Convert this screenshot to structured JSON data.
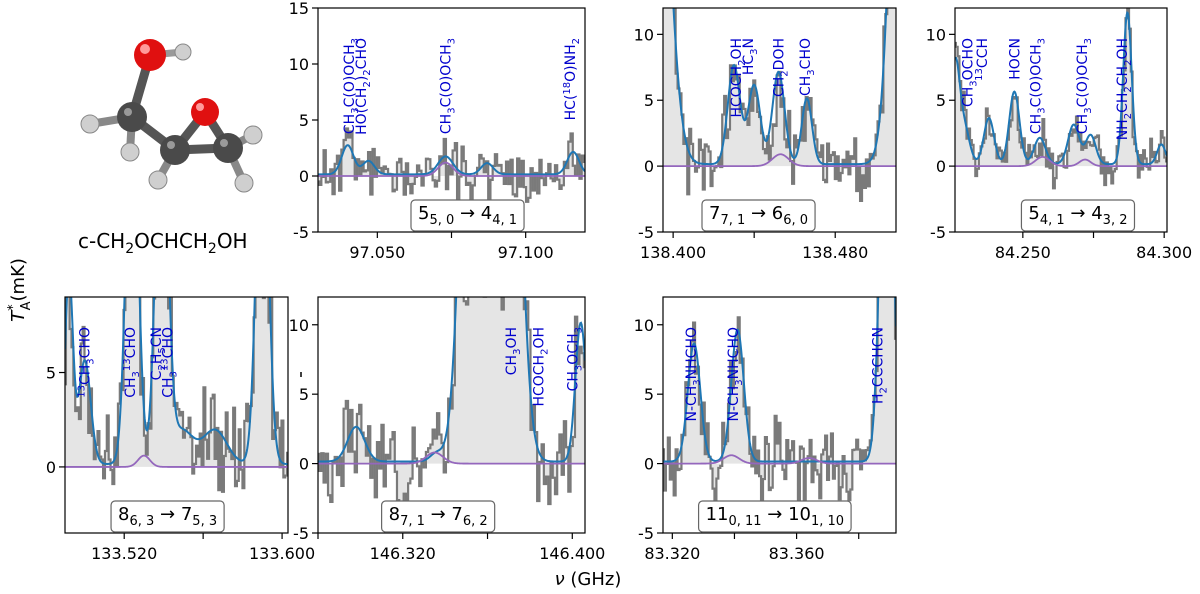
{
  "molecule": {
    "name": "c-CH",
    "name_parts": [
      "c-CH",
      "2",
      "OCHCH",
      "2",
      "OH"
    ]
  },
  "axes_labels": {
    "y_main": "T",
    "y_sup": "*",
    "y_sub": "A",
    "y_unit": "(mK)",
    "x_nu": "ν",
    "x_unit": "(GHz)"
  },
  "colors": {
    "observed": "#7a7a7a",
    "model_total": "#1f77b4",
    "model_molecule": "#9467bd",
    "label_text": "#0000cd",
    "fill": "#e5e5e5"
  },
  "chart_data": [
    {
      "type": "line",
      "panel": 1,
      "xlim": [
        97.03,
        97.12
      ],
      "ylim": [
        -5,
        15
      ],
      "xticks": [
        "97.050",
        "97.100"
      ],
      "xtick_values": [
        97.05,
        97.1
      ],
      "yticks": [
        "-5",
        "0",
        "5",
        "10",
        "15"
      ],
      "ytick_values": [
        -5,
        0,
        5,
        10,
        15
      ],
      "transition": {
        "parts": [
          [
            "5",
            ""
          ],
          [
            "5, 0",
            "sub"
          ],
          [
            " → 4",
            ""
          ],
          [
            "4, 1",
            "sub"
          ]
        ]
      },
      "model_peaks": [
        [
          97.04,
          2.6,
          0.002
        ],
        [
          97.047,
          1.2,
          0.002
        ],
        [
          97.073,
          1.6,
          0.0025
        ],
        [
          97.087,
          1.0,
          0.002
        ],
        [
          97.116,
          2.0,
          0.002
        ]
      ],
      "molecule_peaks": [
        [
          97.073,
          1.2,
          0.0025
        ]
      ],
      "obs_seed": 11,
      "obs_noise": 1.8,
      "labels": [
        {
          "x": 97.0405,
          "parts": [
            [
              "CH",
              ""
            ],
            [
              "3",
              "sub"
            ],
            [
              "C(O)OCH",
              ""
            ],
            [
              "3",
              "sub"
            ]
          ]
        },
        {
          "x": 97.0445,
          "parts": [
            [
              "HO(CH",
              ""
            ],
            [
              "2",
              "sub"
            ],
            [
              ")",
              ""
            ],
            [
              "2",
              "sub"
            ],
            [
              "CHO",
              ""
            ]
          ]
        },
        {
          "x": 97.073,
          "parts": [
            [
              "CH",
              ""
            ],
            [
              "3",
              "sub"
            ],
            [
              "C(O)OCH",
              ""
            ],
            [
              "3",
              "sub"
            ]
          ]
        },
        {
          "x": 97.115,
          "parts": [
            [
              "HC(",
              ""
            ],
            [
              "18",
              "sup"
            ],
            [
              "O)NH",
              ""
            ],
            [
              "2",
              "sub"
            ]
          ]
        }
      ]
    },
    {
      "type": "line",
      "panel": 2,
      "xlim": [
        138.395,
        138.51
      ],
      "ylim": [
        -5,
        12
      ],
      "xticks": [
        "138.400",
        "138.480"
      ],
      "xtick_values": [
        138.4,
        138.48
      ],
      "yticks": [
        "-5",
        "0",
        "5",
        "10"
      ],
      "ytick_values": [
        -5,
        0,
        5,
        10
      ],
      "transition": {
        "parts": [
          [
            "7",
            ""
          ],
          [
            "7, 1",
            "sub"
          ],
          [
            " → 6",
            ""
          ],
          [
            "6, 0",
            "sub"
          ]
        ]
      },
      "model_peaks": [
        [
          138.392,
          30,
          0.006
        ],
        [
          138.43,
          7.5,
          0.003
        ],
        [
          138.44,
          6.0,
          0.003
        ],
        [
          138.452,
          7.0,
          0.003
        ],
        [
          138.513,
          40,
          0.005
        ],
        [
          138.466,
          5.0,
          0.0025
        ]
      ],
      "molecule_peaks": [
        [
          138.453,
          0.9,
          0.004
        ]
      ],
      "obs_seed": 23,
      "obs_noise": 1.9,
      "labels": [
        {
          "x": 138.431,
          "parts": [
            [
              "HCOCH",
              ""
            ],
            [
              "2",
              "sub"
            ],
            [
              "OH",
              ""
            ]
          ]
        },
        {
          "x": 138.437,
          "parts": [
            [
              "HC",
              ""
            ],
            [
              "3",
              "sub"
            ],
            [
              "N",
              ""
            ]
          ]
        },
        {
          "x": 138.452,
          "parts": [
            [
              "CH",
              ""
            ],
            [
              "2",
              "sub"
            ],
            [
              "DOH",
              ""
            ]
          ]
        },
        {
          "x": 138.465,
          "parts": [
            [
              "CH",
              ""
            ],
            [
              "3",
              "sub"
            ],
            [
              "CHO",
              ""
            ]
          ]
        }
      ]
    },
    {
      "type": "line",
      "panel": 3,
      "xlim": [
        84.226,
        84.301
      ],
      "ylim": [
        -5,
        12
      ],
      "xticks": [
        "84.250",
        "84.300"
      ],
      "xtick_values": [
        84.25,
        84.3
      ],
      "yticks": [
        "-5",
        "0",
        "5",
        "10"
      ],
      "ytick_values": [
        -5,
        0,
        5,
        10
      ],
      "transition": {
        "parts": [
          [
            "5",
            ""
          ],
          [
            "4, 1",
            "sub"
          ],
          [
            " → 4",
            ""
          ],
          [
            "3, 2",
            "sub"
          ]
        ]
      },
      "model_peaks": [
        [
          84.226,
          7.0,
          0.0015
        ],
        [
          84.229,
          3.0,
          0.002
        ],
        [
          84.238,
          3.5,
          0.0018
        ],
        [
          84.247,
          5.5,
          0.0018
        ],
        [
          84.256,
          2.0,
          0.002
        ],
        [
          84.268,
          3.0,
          0.002
        ],
        [
          84.274,
          2.2,
          0.0018
        ],
        [
          84.287,
          11.5,
          0.0015
        ],
        [
          84.299,
          1.5,
          0.0015
        ]
      ],
      "molecule_peaks": [
        [
          84.257,
          0.7,
          0.0025
        ],
        [
          84.272,
          0.5,
          0.002
        ]
      ],
      "obs_seed": 37,
      "obs_noise": 1.2,
      "labels": [
        {
          "x": 84.2305,
          "parts": [
            [
              "CH",
              ""
            ],
            [
              "3",
              "sub"
            ],
            [
              "OCHO",
              ""
            ]
          ]
        },
        {
          "x": 84.2355,
          "parts": [
            [
              "13",
              "sup"
            ],
            [
              "CCH",
              ""
            ]
          ]
        },
        {
          "x": 84.247,
          "parts": [
            [
              "HOCN",
              ""
            ]
          ]
        },
        {
          "x": 84.2545,
          "parts": [
            [
              "CH",
              ""
            ],
            [
              "3",
              "sub"
            ],
            [
              "C(O)OCH",
              ""
            ],
            [
              "3",
              "sub"
            ]
          ]
        },
        {
          "x": 84.271,
          "parts": [
            [
              "CH",
              ""
            ],
            [
              "3",
              "sub"
            ],
            [
              "C(O)OCH",
              ""
            ],
            [
              "3",
              "sub"
            ]
          ]
        },
        {
          "x": 84.285,
          "parts": [
            [
              "NH",
              ""
            ],
            [
              "2",
              "sub"
            ],
            [
              "CH",
              ""
            ],
            [
              "2",
              "sub"
            ],
            [
              "CH",
              ""
            ],
            [
              "2",
              "sub"
            ],
            [
              "OH",
              ""
            ]
          ]
        }
      ]
    },
    {
      "type": "line",
      "panel": 4,
      "xlim": [
        133.49,
        133.603
      ],
      "ylim": [
        -3.5,
        9
      ],
      "xticks": [
        "133.520",
        "133.600"
      ],
      "xtick_values": [
        133.52,
        133.6
      ],
      "yticks": [
        "0",
        "5"
      ],
      "ytick_values": [
        0,
        5
      ],
      "transition": {
        "parts": [
          [
            "8",
            ""
          ],
          [
            "6, 3",
            "sub"
          ],
          [
            " → 7",
            ""
          ],
          [
            "5, 3",
            "sub"
          ]
        ]
      },
      "model_peaks": [
        [
          133.5,
          5.5,
          0.003
        ],
        [
          133.492,
          10,
          0.002
        ],
        [
          133.524,
          20,
          0.003
        ],
        [
          133.539,
          20,
          0.003
        ],
        [
          133.549,
          1.8,
          0.006
        ],
        [
          133.566,
          1.8,
          0.006
        ],
        [
          133.59,
          20,
          0.003
        ]
      ],
      "molecule_peaks": [
        [
          133.53,
          0.6,
          0.003
        ]
      ],
      "obs_seed": 53,
      "obs_noise": 1.9,
      "labels": [
        {
          "x": 133.5,
          "parts": [
            [
              "13",
              "sup"
            ],
            [
              "CH",
              ""
            ],
            [
              "3",
              "sub"
            ],
            [
              "CHO",
              ""
            ]
          ]
        },
        {
          "x": 133.523,
          "parts": [
            [
              "CH",
              ""
            ],
            [
              "3",
              "sub"
            ],
            [
              "13",
              "sup"
            ],
            [
              "CHO",
              ""
            ]
          ]
        },
        {
          "x": 133.536,
          "parts": [
            [
              "C",
              ""
            ],
            [
              "2",
              "sub"
            ],
            [
              "H",
              ""
            ],
            [
              "5",
              "sub"
            ],
            [
              "CN",
              ""
            ]
          ]
        },
        {
          "x": 133.542,
          "parts": [
            [
              "CH",
              ""
            ],
            [
              "3",
              "sub"
            ],
            [
              "13",
              "sup"
            ],
            [
              "CHO",
              ""
            ]
          ]
        }
      ]
    },
    {
      "type": "line",
      "panel": 5,
      "xlim": [
        146.28,
        146.406
      ],
      "ylim": [
        -5,
        12
      ],
      "xticks": [
        "146.320",
        "146.400"
      ],
      "xtick_values": [
        146.32,
        146.4
      ],
      "yticks": [
        "-5",
        "0",
        "5",
        "10"
      ],
      "ytick_values": [
        -5,
        0,
        5,
        10
      ],
      "transition": {
        "parts": [
          [
            "8",
            ""
          ],
          [
            "7, 1",
            "sub"
          ],
          [
            " → 7",
            ""
          ],
          [
            "6, 2",
            "sub"
          ]
        ]
      },
      "model_peaks": [
        [
          146.298,
          2.5,
          0.004
        ],
        [
          146.336,
          0.6,
          0.003
        ],
        [
          146.353,
          40,
          0.005
        ],
        [
          146.37,
          40,
          0.005
        ],
        [
          146.404,
          10,
          0.0025
        ]
      ],
      "molecule_peaks": [
        [
          146.335,
          0.8,
          0.004
        ]
      ],
      "obs_seed": 67,
      "obs_noise": 2.4,
      "labels": [
        {
          "x": 146.371,
          "parts": [
            [
              "CH",
              ""
            ],
            [
              "3",
              "sub"
            ],
            [
              "OH",
              ""
            ]
          ]
        },
        {
          "x": 146.384,
          "parts": [
            [
              "HCOCH",
              ""
            ],
            [
              "2",
              "sub"
            ],
            [
              "OH",
              ""
            ]
          ]
        },
        {
          "x": 146.4,
          "parts": [
            [
              "CH",
              ""
            ],
            [
              "3",
              "sub"
            ],
            [
              "OCH",
              ""
            ],
            [
              "3",
              "sub"
            ]
          ]
        }
      ]
    },
    {
      "type": "line",
      "panel": 6,
      "xlim": [
        83.317,
        83.392
      ],
      "ylim": [
        -5,
        12
      ],
      "xticks": [
        "83.320",
        "83.360"
      ],
      "xtick_values": [
        83.32,
        83.36
      ],
      "yticks": [
        "-5",
        "0",
        "5",
        "10"
      ],
      "ytick_values": [
        -5,
        0,
        5,
        10
      ],
      "transition": {
        "parts": [
          [
            "11",
            ""
          ],
          [
            "0, 11",
            "sub"
          ],
          [
            " → 10",
            ""
          ],
          [
            "1, 10",
            "sub"
          ]
        ]
      },
      "model_peaks": [
        [
          83.327,
          8.5,
          0.002
        ],
        [
          83.341,
          9.5,
          0.002
        ],
        [
          83.389,
          30,
          0.002
        ]
      ],
      "molecule_peaks": [
        [
          83.339,
          0.6,
          0.0025
        ],
        [
          83.364,
          0.4,
          0.0025
        ]
      ],
      "obs_seed": 79,
      "obs_noise": 2.0,
      "labels": [
        {
          "x": 83.326,
          "parts": [
            [
              "N-CH",
              ""
            ],
            [
              "3",
              "sub"
            ],
            [
              "NHCHO",
              ""
            ]
          ]
        },
        {
          "x": 83.3395,
          "parts": [
            [
              "N-CH",
              ""
            ],
            [
              "3",
              "sub"
            ],
            [
              "NHCHO",
              ""
            ]
          ]
        },
        {
          "x": 83.386,
          "parts": [
            [
              "H",
              ""
            ],
            [
              "2",
              "sub"
            ],
            [
              "CCCHCN",
              ""
            ]
          ]
        }
      ]
    }
  ]
}
